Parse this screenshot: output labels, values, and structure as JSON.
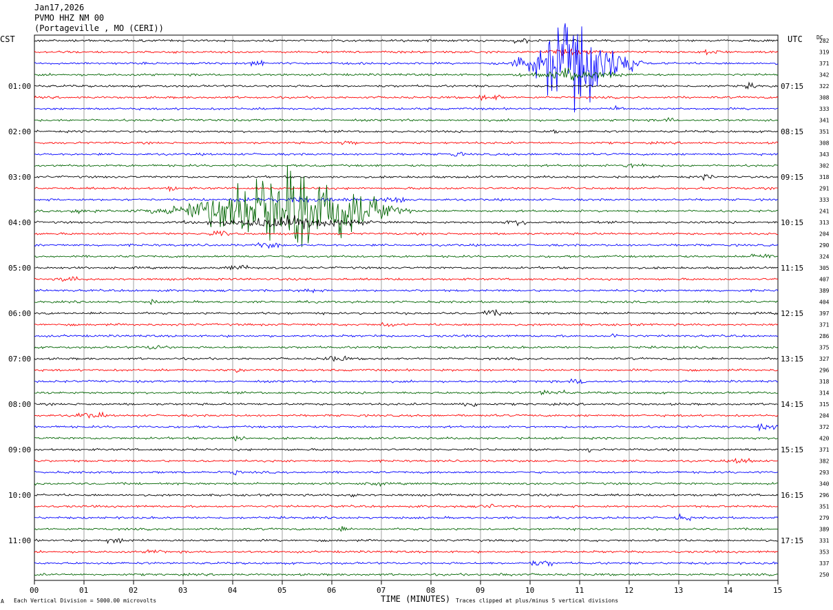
{
  "header": {
    "date": "Jan17,2026",
    "station": "PVMO HHZ NM 00",
    "location": "(Portageville , MO (CERI))"
  },
  "left_zone": "CST",
  "right_zone": "UTC",
  "dc_label": "DC",
  "footer": {
    "scale_marker": "A",
    "scale_note": "Each Vertical Division = 5000.00 microvolts",
    "clip_note": "Traces clipped at plus/minus 5 vertical divisions"
  },
  "chart_data": {
    "type": "line",
    "xlabel": "TIME (MINUTES)",
    "xlim": [
      0,
      15
    ],
    "x_ticks": [
      "00",
      "01",
      "02",
      "03",
      "04",
      "05",
      "06",
      "07",
      "08",
      "09",
      "10",
      "11",
      "12",
      "13",
      "14",
      "15"
    ],
    "trace_count": 48,
    "traces_per_hour": 4,
    "minutes_per_trace": 15,
    "trace_colors": [
      "#000000",
      "#ff0000",
      "#0000ff",
      "#006400"
    ],
    "left_hour_labels": [
      "01:00",
      "02:00",
      "03:00",
      "04:00",
      "05:00",
      "06:00",
      "07:00",
      "08:00",
      "09:00",
      "10:00",
      "11:00"
    ],
    "right_hour_labels": [
      "07:15",
      "08:15",
      "09:15",
      "10:15",
      "11:15",
      "12:15",
      "13:15",
      "14:15",
      "15:15",
      "16:15",
      "17:15"
    ],
    "dc_offsets": [
      282,
      319,
      371,
      342,
      322,
      308,
      333,
      341,
      351,
      308,
      343,
      302,
      318,
      291,
      333,
      241,
      313,
      204,
      290,
      324,
      305,
      407,
      389,
      404,
      397,
      371,
      286,
      375,
      327,
      296,
      318,
      314,
      315,
      204,
      372,
      420,
      371,
      382,
      293,
      340,
      296,
      351,
      279,
      389,
      331,
      353,
      337,
      250
    ],
    "events": [
      {
        "trace_index": 2,
        "start_minute": 9.3,
        "peak_minute": 10.7,
        "end_minute": 12.6,
        "peak_divisions": 5
      },
      {
        "trace_index": 15,
        "start_minute": 1.5,
        "peak_minute": 5.2,
        "end_minute": 8.0,
        "peak_divisions": 5
      }
    ],
    "clip_divisions": 5,
    "grid": true
  }
}
